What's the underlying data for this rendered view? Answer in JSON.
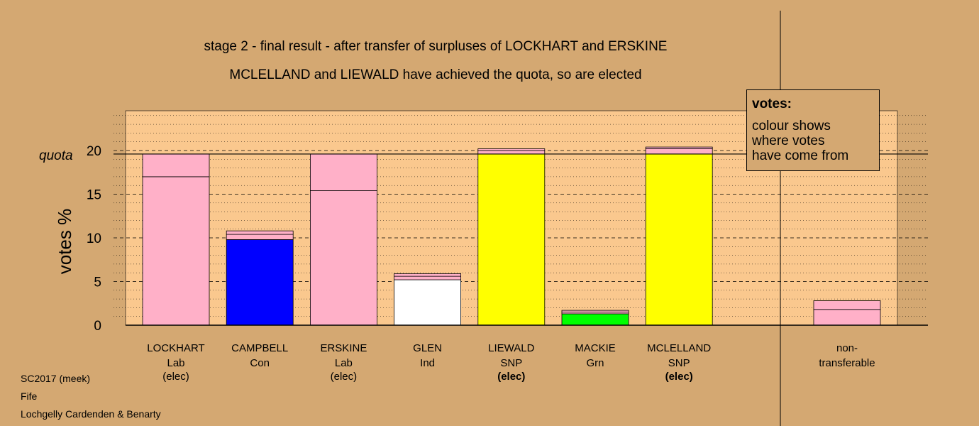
{
  "chart_data": {
    "type": "bar",
    "title": "stage 2 - final result - after transfer of surpluses of LOCKHART and ERSKINE",
    "subtitle": "MCLELLAND and LIEWALD have achieved the quota, so are elected",
    "ylabel": "votes %",
    "ylim": [
      0,
      24.5
    ],
    "yticks": [
      "0",
      "5",
      "10",
      "15",
      "20"
    ],
    "quota": 19.6,
    "quota_label": "quota",
    "grid": true,
    "candidates": [
      {
        "name": "LOCKHART",
        "party": "Lab",
        "status": "(elec)",
        "status_bold": false,
        "segments": [
          {
            "value": 17.0,
            "color": "#ffb0c8"
          },
          {
            "value": 2.6,
            "color": "#ffb0c8"
          }
        ]
      },
      {
        "name": "CAMPBELL",
        "party": "Con",
        "status": "",
        "status_bold": false,
        "segments": [
          {
            "value": 9.8,
            "color": "#0000ff"
          },
          {
            "value": 0.6,
            "color": "#ffb0c8"
          },
          {
            "value": 0.4,
            "color": "#ffb0c8"
          }
        ]
      },
      {
        "name": "ERSKINE",
        "party": "Lab",
        "status": "(elec)",
        "status_bold": false,
        "segments": [
          {
            "value": 15.4,
            "color": "#ffb0c8"
          },
          {
            "value": 4.2,
            "color": "#ffb0c8"
          }
        ]
      },
      {
        "name": "GLEN",
        "party": "Ind",
        "status": "",
        "status_bold": false,
        "segments": [
          {
            "value": 5.2,
            "color": "#ffffff"
          },
          {
            "value": 0.4,
            "color": "#ffb0c8"
          },
          {
            "value": 0.3,
            "color": "#ffb0c8"
          }
        ]
      },
      {
        "name": "LIEWALD",
        "party": "SNP",
        "status": "(elec)",
        "status_bold": true,
        "segments": [
          {
            "value": 19.6,
            "color": "#ffff00"
          },
          {
            "value": 0.4,
            "color": "#ffb0c8"
          },
          {
            "value": 0.2,
            "color": "#ffb0c8"
          }
        ]
      },
      {
        "name": "MACKIE",
        "party": "Grn",
        "status": "",
        "status_bold": false,
        "segments": [
          {
            "value": 1.3,
            "color": "#00ff00"
          },
          {
            "value": 0.2,
            "color": "#ffb0c8"
          },
          {
            "value": 0.2,
            "color": "#ffb0c8"
          }
        ]
      },
      {
        "name": "MCLELLAND",
        "party": "SNP",
        "status": "(elec)",
        "status_bold": true,
        "segments": [
          {
            "value": 19.6,
            "color": "#ffff00"
          },
          {
            "value": 0.6,
            "color": "#ffb0c8"
          },
          {
            "value": 0.2,
            "color": "#ffb0c8"
          }
        ]
      }
    ],
    "nontransferable": {
      "label1": "non-",
      "label2": "transferable",
      "segments": [
        {
          "value": 1.8,
          "color": "#ffb0c8"
        },
        {
          "value": 1.0,
          "color": "#ffb0c8"
        }
      ]
    },
    "colors": {
      "background": "#d4a872",
      "plot_area": "#fac88e",
      "pink": "#ffb0c8"
    }
  },
  "legend": {
    "title": "votes:",
    "line1": "colour shows",
    "line2": "where votes",
    "line3": "have come from"
  },
  "footer": {
    "line1": "SC2017 (meek)",
    "line2": "Fife",
    "line3": "Lochgelly Cardenden & Benarty"
  }
}
